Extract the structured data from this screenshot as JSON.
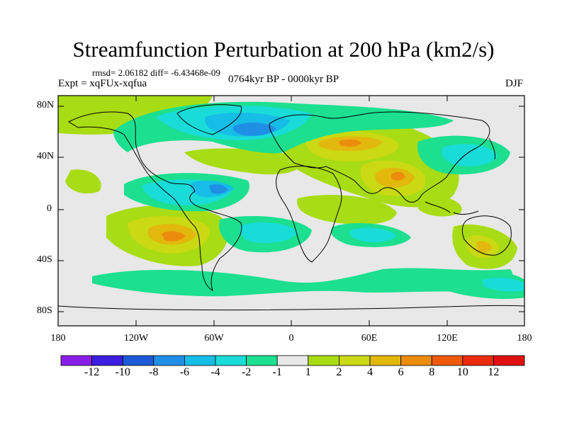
{
  "title": "Streamfunction Perturbation at 200 hPa (km2/s)",
  "stats_line": "rmsd= 2.06182 diff= -6.43468e-09",
  "experiment": "Expt = xqFUx-xqfua",
  "period": "0764kyr BP - 0000kyr BP",
  "season": "DJF",
  "lat_ticks": [
    "80N",
    "40N",
    "0",
    "40S",
    "80S"
  ],
  "lon_ticks": [
    "180",
    "120W",
    "60W",
    "0",
    "60E",
    "120E",
    "180"
  ],
  "colorbar": {
    "labels": [
      "-12",
      "-10",
      "-8",
      "-6",
      "-4",
      "-2",
      "-1",
      "1",
      "2",
      "4",
      "6",
      "8",
      "10",
      "12"
    ],
    "colors": [
      "#8a1ee8",
      "#3c1ee0",
      "#1c5ad6",
      "#1f8fe6",
      "#16bde6",
      "#19dcd8",
      "#1cdf8f",
      "#e8e8e8",
      "#a8dc14",
      "#cad913",
      "#e2b80d",
      "#ec8c0c",
      "#ef5a0a",
      "#ec2a0c",
      "#e01010"
    ]
  },
  "legend_colors": {
    "ocean_bg": "#e8e8e8",
    "frame": "#000000"
  }
}
